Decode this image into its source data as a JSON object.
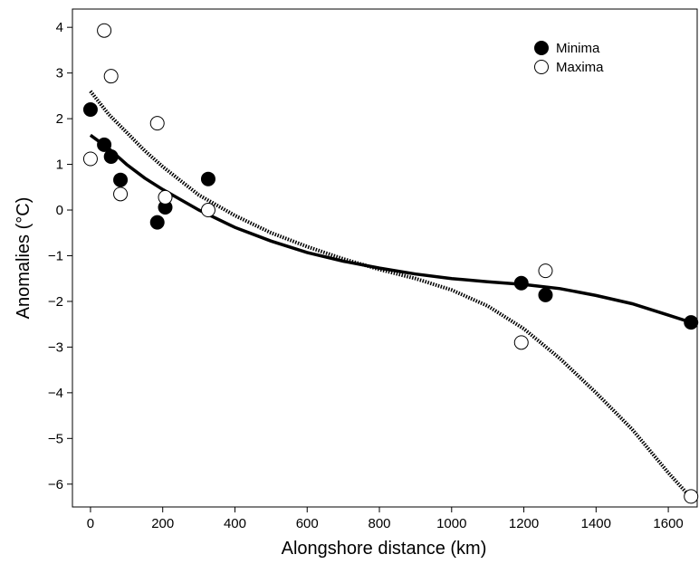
{
  "chart_data": {
    "type": "scatter",
    "xlabel": "Alongshore distance (km)",
    "ylabel": "Anomalies (°C)",
    "xlim": [
      -50,
      1680
    ],
    "ylim": [
      -6.5,
      4.4
    ],
    "xticks": [
      0,
      200,
      400,
      600,
      800,
      1000,
      1200,
      1400,
      1600
    ],
    "yticks": [
      -6,
      -5,
      -4,
      -3,
      -2,
      -1,
      0,
      1,
      2,
      3,
      4
    ],
    "xtick_labels": [
      "0",
      "200",
      "400",
      "600",
      "800",
      "1000",
      "1200",
      "1400",
      "1600"
    ],
    "ytick_labels": [
      "−6",
      "−5",
      "−4",
      "−3",
      "−2",
      "−1",
      "0",
      "1",
      "2",
      "3",
      "4"
    ],
    "grid": false,
    "legend_position": "top-right",
    "series": [
      {
        "name": "Minima",
        "marker": "filled-circle",
        "color": "#000000",
        "points": [
          {
            "x": 0,
            "y": 2.2
          },
          {
            "x": 38,
            "y": 1.43
          },
          {
            "x": 57,
            "y": 1.17
          },
          {
            "x": 83,
            "y": 0.66
          },
          {
            "x": 185,
            "y": -0.27
          },
          {
            "x": 207,
            "y": 0.06
          },
          {
            "x": 326,
            "y": 0.68
          },
          {
            "x": 1193,
            "y": -1.6
          },
          {
            "x": 1260,
            "y": -1.86
          },
          {
            "x": 1663,
            "y": -2.46
          }
        ],
        "fit": {
          "style": "solid",
          "points": [
            {
              "x": 0,
              "y": 1.64
            },
            {
              "x": 50,
              "y": 1.35
            },
            {
              "x": 100,
              "y": 1.0
            },
            {
              "x": 150,
              "y": 0.7
            },
            {
              "x": 200,
              "y": 0.45
            },
            {
              "x": 300,
              "y": 0.0
            },
            {
              "x": 400,
              "y": -0.38
            },
            {
              "x": 500,
              "y": -0.68
            },
            {
              "x": 600,
              "y": -0.93
            },
            {
              "x": 700,
              "y": -1.12
            },
            {
              "x": 800,
              "y": -1.27
            },
            {
              "x": 900,
              "y": -1.4
            },
            {
              "x": 1000,
              "y": -1.5
            },
            {
              "x": 1100,
              "y": -1.57
            },
            {
              "x": 1200,
              "y": -1.63
            },
            {
              "x": 1300,
              "y": -1.72
            },
            {
              "x": 1400,
              "y": -1.87
            },
            {
              "x": 1500,
              "y": -2.05
            },
            {
              "x": 1600,
              "y": -2.3
            },
            {
              "x": 1663,
              "y": -2.46
            }
          ]
        }
      },
      {
        "name": "Maxima",
        "marker": "open-circle",
        "color": "#000000",
        "points": [
          {
            "x": 0,
            "y": 1.12
          },
          {
            "x": 38,
            "y": 3.93
          },
          {
            "x": 57,
            "y": 2.93
          },
          {
            "x": 83,
            "y": 0.35
          },
          {
            "x": 185,
            "y": 1.9
          },
          {
            "x": 207,
            "y": 0.28
          },
          {
            "x": 326,
            "y": 0.0
          },
          {
            "x": 1193,
            "y": -2.9
          },
          {
            "x": 1260,
            "y": -1.33
          },
          {
            "x": 1663,
            "y": -6.27
          }
        ],
        "fit": {
          "style": "dotted",
          "points": [
            {
              "x": 0,
              "y": 2.6
            },
            {
              "x": 50,
              "y": 2.1
            },
            {
              "x": 100,
              "y": 1.7
            },
            {
              "x": 150,
              "y": 1.3
            },
            {
              "x": 200,
              "y": 0.95
            },
            {
              "x": 300,
              "y": 0.33
            },
            {
              "x": 400,
              "y": -0.12
            },
            {
              "x": 500,
              "y": -0.5
            },
            {
              "x": 600,
              "y": -0.8
            },
            {
              "x": 700,
              "y": -1.07
            },
            {
              "x": 800,
              "y": -1.3
            },
            {
              "x": 900,
              "y": -1.5
            },
            {
              "x": 1000,
              "y": -1.75
            },
            {
              "x": 1100,
              "y": -2.1
            },
            {
              "x": 1200,
              "y": -2.6
            },
            {
              "x": 1300,
              "y": -3.25
            },
            {
              "x": 1400,
              "y": -4.0
            },
            {
              "x": 1500,
              "y": -4.8
            },
            {
              "x": 1600,
              "y": -5.75
            },
            {
              "x": 1663,
              "y": -6.3
            }
          ]
        }
      }
    ]
  }
}
